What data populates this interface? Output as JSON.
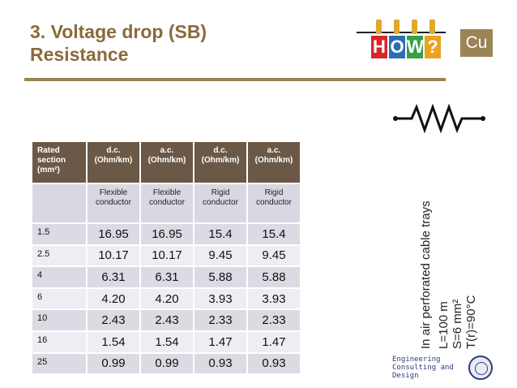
{
  "title": {
    "line1": "3. Voltage drop (SB)",
    "line2": "Resistance"
  },
  "logo": {
    "letters": [
      "H",
      "O",
      "W",
      "?"
    ],
    "colors": [
      "#d7262b",
      "#2c6db5",
      "#35a046",
      "#e8a321"
    ]
  },
  "badge": "Cu",
  "table": {
    "header": [
      "Rated section (mm²)",
      "d.c. (Ohm/km)",
      "a.c. (Ohm/km)",
      "d.c. (Ohm/km)",
      "a.c. (Ohm/km)"
    ],
    "subheader": [
      "",
      "Flexible conductor",
      "Flexible conductor",
      "Rigid conductor",
      "Rigid conductor"
    ],
    "rows": [
      [
        "1.5",
        "16.95",
        "16.95",
        "15.4",
        "15.4"
      ],
      [
        "2.5",
        "10.17",
        "10.17",
        "9.45",
        "9.45"
      ],
      [
        "4",
        "6.31",
        "6.31",
        "5.88",
        "5.88"
      ],
      [
        "6",
        "4.20",
        "4.20",
        "3.93",
        "3.93"
      ],
      [
        "10",
        "2.43",
        "2.43",
        "2.33",
        "2.33"
      ],
      [
        "16",
        "1.54",
        "1.54",
        "1.47",
        "1.47"
      ],
      [
        "25",
        "0.99",
        "0.99",
        "0.93",
        "0.93"
      ]
    ]
  },
  "conditions": [
    "In air perforated cable trays",
    "L=100 m",
    "S=6 mm²",
    "T(r)=90°C"
  ],
  "footer_logo": {
    "lines": [
      "Engineering",
      "Consulting and",
      "Design"
    ]
  }
}
